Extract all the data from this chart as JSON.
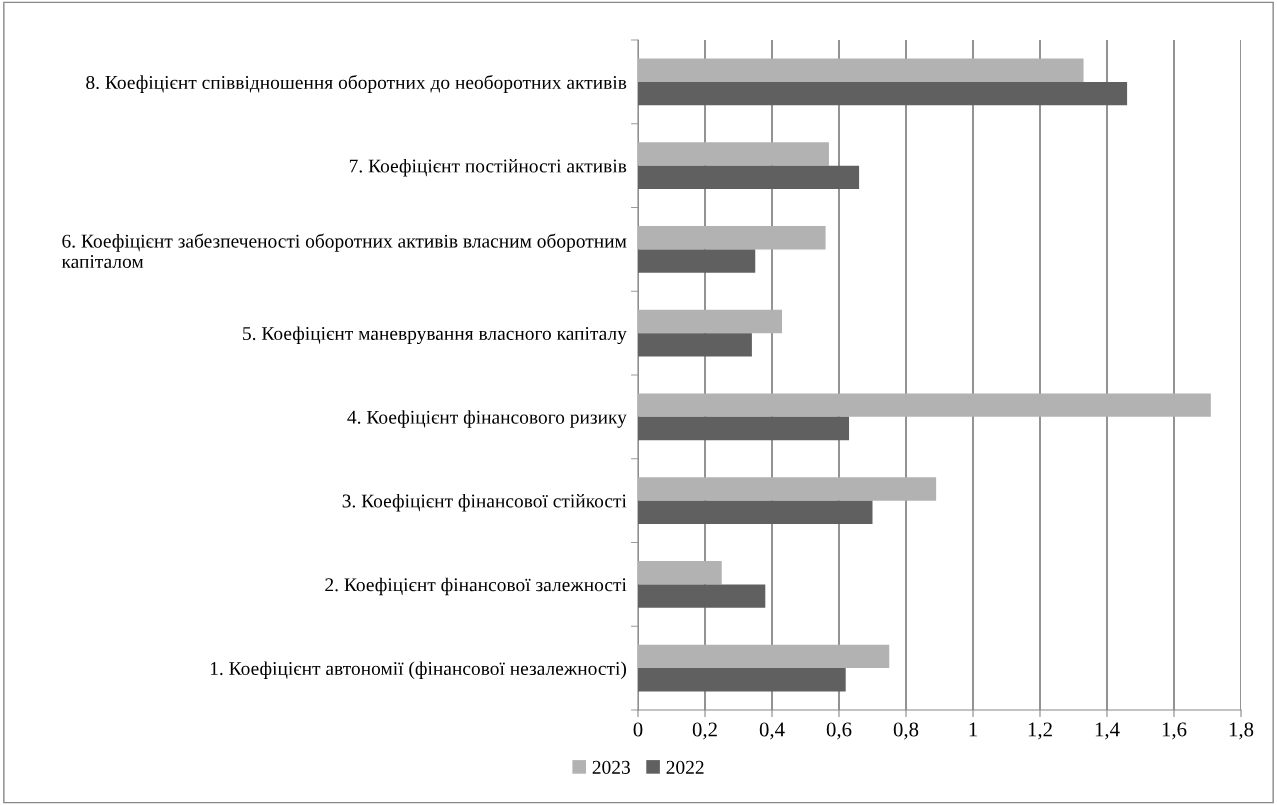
{
  "chart_data": {
    "type": "bar",
    "orientation": "horizontal",
    "categories": [
      "8. Коефіцієнт співвідношення оборотних до необоротних активів",
      "7. Коефіцієнт постійності активів",
      "6. Коефіцієнт забезпеченості оборотних активів власним оборотним капіталом",
      "5. Коефіцієнт маневрування власного капіталу",
      "4. Коефіцієнт фінансового ризику",
      "3. Коефіцієнт фінансової стійкості",
      "2. Коефіцієнт фінансової залежності",
      "1. Коефіцієнт автономії (фінансової незалежності)"
    ],
    "series": [
      {
        "name": "2023",
        "color": "#b2b2b2",
        "values": [
          1.33,
          0.57,
          0.56,
          0.43,
          1.71,
          0.89,
          0.25,
          0.75
        ]
      },
      {
        "name": "2022",
        "color": "#606060",
        "values": [
          1.46,
          0.66,
          0.35,
          0.34,
          0.63,
          0.7,
          0.38,
          0.62
        ]
      }
    ],
    "xlim": [
      0,
      1.8
    ],
    "xticks": [
      0,
      {
        "value": 0.2,
        "label": "0,2"
      },
      {
        "value": 0.4,
        "label": "0,4"
      },
      {
        "value": 0.6,
        "label": "0,6"
      },
      {
        "value": 0.8,
        "label": "0,8"
      },
      1,
      {
        "value": 1.2,
        "label": "1,2"
      },
      {
        "value": 1.4,
        "label": "1,4"
      },
      {
        "value": 1.6,
        "label": "1,6"
      },
      {
        "value": 1.8,
        "label": "1,8"
      }
    ],
    "grid": "x",
    "legend": "bottom"
  }
}
